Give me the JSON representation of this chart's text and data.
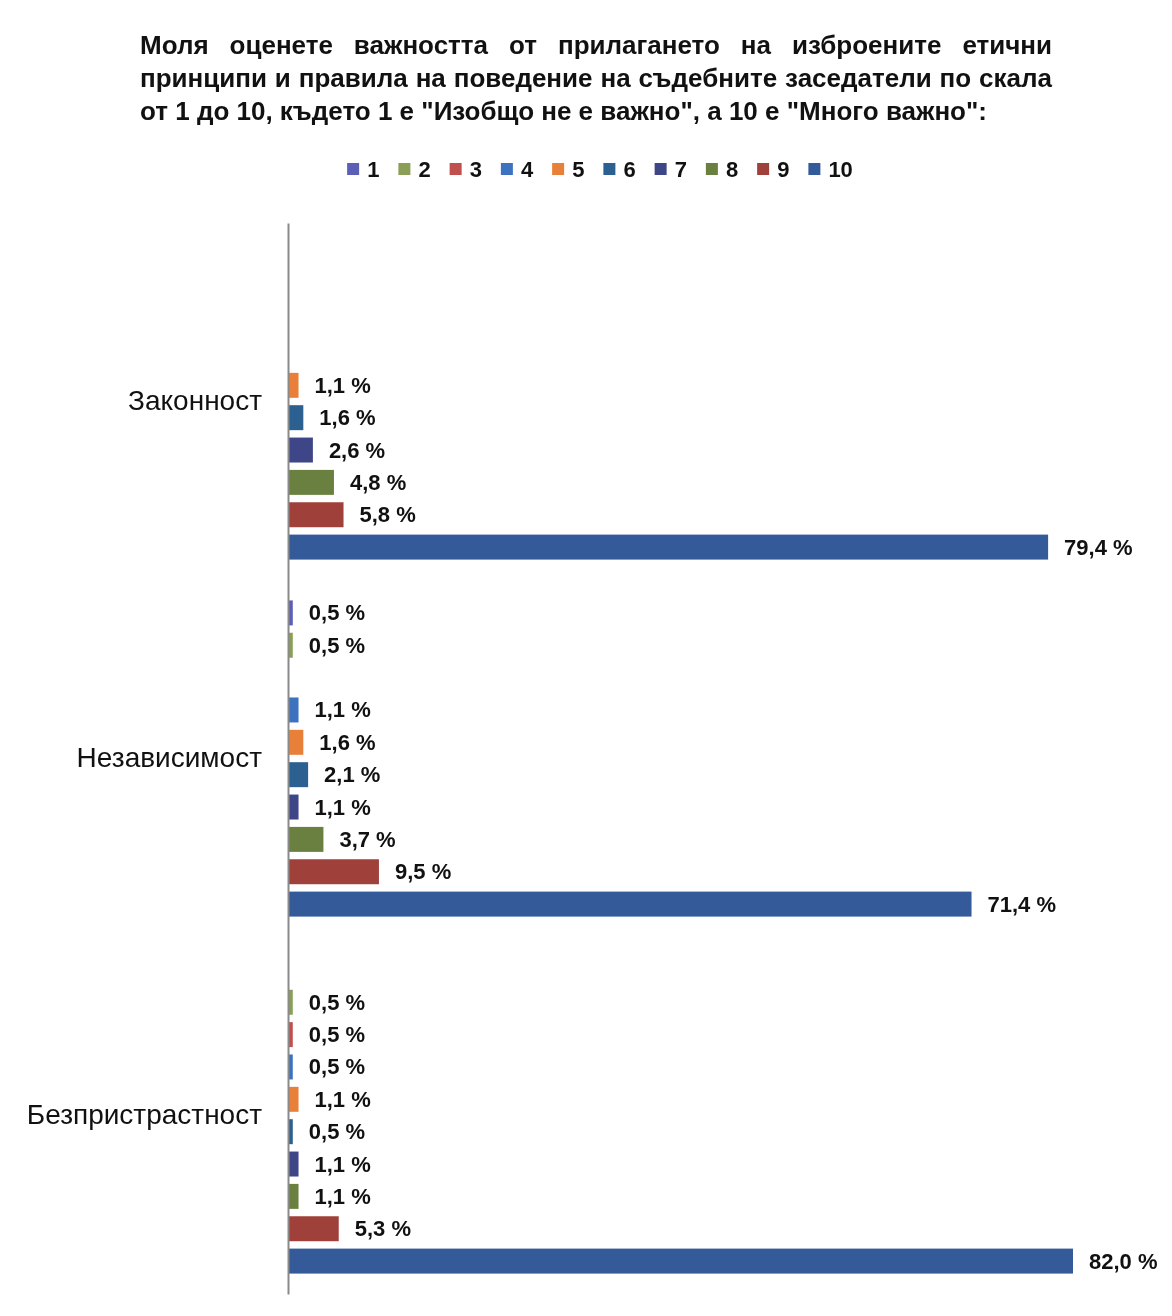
{
  "chart_data": {
    "type": "bar",
    "orientation": "horizontal",
    "title": "Моля оценете важността от прилагането на изброените етични принципи и правила на поведение на съдебните заседатели по скала от 1 до 10, където 1 е \"Изобщо не е важно\", а 10 е \"Много важно\":",
    "categories": [
      "Законност",
      "Независимост",
      "Безпристрастност"
    ],
    "series": [
      {
        "name": "1",
        "color": "#5b5fb5",
        "values": [
          null,
          0.5,
          null
        ],
        "value_labels": [
          null,
          "0,5 %",
          null
        ]
      },
      {
        "name": "2",
        "color": "#8a9f55",
        "values": [
          null,
          0.5,
          0.5
        ],
        "value_labels": [
          null,
          "0,5 %",
          "0,5 %"
        ]
      },
      {
        "name": "3",
        "color": "#c0504d",
        "values": [
          null,
          null,
          0.5
        ],
        "value_labels": [
          null,
          null,
          "0,5 %"
        ]
      },
      {
        "name": "4",
        "color": "#3d72c0",
        "values": [
          null,
          1.1,
          0.5
        ],
        "value_labels": [
          null,
          "1,1 %",
          "0,5 %"
        ]
      },
      {
        "name": "5",
        "color": "#e8803a",
        "values": [
          1.1,
          1.6,
          1.1
        ],
        "value_labels": [
          "1,1 %",
          "1,6 %",
          "1,1 %"
        ]
      },
      {
        "name": "6",
        "color": "#2c6090",
        "values": [
          1.6,
          2.1,
          0.5
        ],
        "value_labels": [
          "1,6 %",
          "2,1 %",
          "0,5 %"
        ]
      },
      {
        "name": "7",
        "color": "#3f4688",
        "values": [
          2.6,
          1.1,
          1.1
        ],
        "value_labels": [
          "2,6 %",
          "1,1 %",
          "1,1 %"
        ]
      },
      {
        "name": "8",
        "color": "#6a8040",
        "values": [
          4.8,
          3.7,
          1.1
        ],
        "value_labels": [
          "4,8 %",
          "3,7 %",
          "1,1 %"
        ]
      },
      {
        "name": "9",
        "color": "#a0403a",
        "values": [
          5.8,
          9.5,
          5.3
        ],
        "value_labels": [
          "5,8 %",
          "9,5 %",
          "5,3 %"
        ]
      },
      {
        "name": "10",
        "color": "#345a9a",
        "values": [
          79.4,
          71.4,
          82.0
        ],
        "value_labels": [
          "79,4 %",
          "71,4 %",
          "82,0 %"
        ]
      }
    ],
    "legend": "top",
    "tick_labels": "y"
  }
}
